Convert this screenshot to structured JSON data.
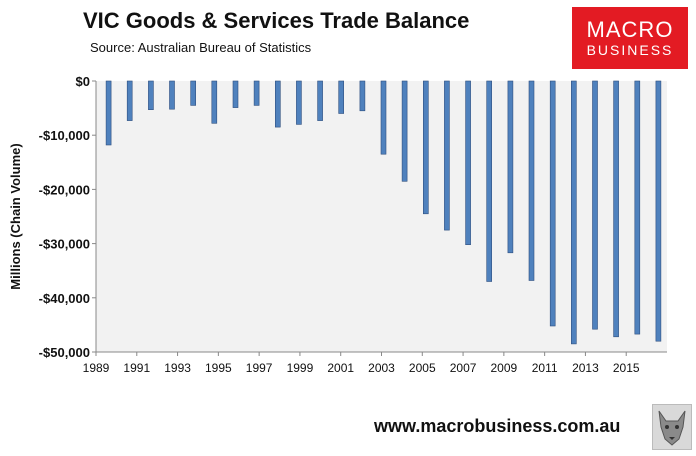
{
  "header": {
    "title": "VIC Goods & Services Trade Balance",
    "source": "Source:  Australian Bureau of Statistics"
  },
  "logo": {
    "line1": "MACRO",
    "line2": "BUSINESS",
    "color": "#e31b23"
  },
  "footer": {
    "url": "www.macrobusiness.com.au"
  },
  "chart_data": {
    "type": "bar",
    "title": "VIC Goods & Services Trade Balance",
    "ylabel": "Millions (Chain Volume)",
    "xlabel": "",
    "ylim": [
      -50000,
      0
    ],
    "yticks": [
      0,
      -10000,
      -20000,
      -30000,
      -40000,
      -50000
    ],
    "ytick_labels": [
      "$0",
      "-$10,000",
      "-$20,000",
      "-$30,000",
      "-$40,000",
      "-$50,000"
    ],
    "xtick_labels": [
      "1989",
      "1991",
      "1993",
      "1995",
      "1997",
      "1999",
      "2001",
      "2003",
      "2005",
      "2007",
      "2009",
      "2011",
      "2013",
      "2015"
    ],
    "grid": false,
    "bar_color": "#4f81bd",
    "plot_background": "#f2f2f2",
    "categories": [
      "1990",
      "1991",
      "1992",
      "1993",
      "1994",
      "1995",
      "1996",
      "1997",
      "1998",
      "1999",
      "2000",
      "2001",
      "2002",
      "2003",
      "2004",
      "2005",
      "2006",
      "2007",
      "2008",
      "2009",
      "2010",
      "2011",
      "2012",
      "2013",
      "2014",
      "2015",
      "2016"
    ],
    "values": [
      -11800,
      -7300,
      -5300,
      -5200,
      -4500,
      -7800,
      -4900,
      -4500,
      -8500,
      -8000,
      -7300,
      -6000,
      -5500,
      -13500,
      -18500,
      -24500,
      -27500,
      -30200,
      -37000,
      -31700,
      -36800,
      -45200,
      -48500,
      -45800,
      -47200,
      -46700,
      -48000
    ]
  }
}
